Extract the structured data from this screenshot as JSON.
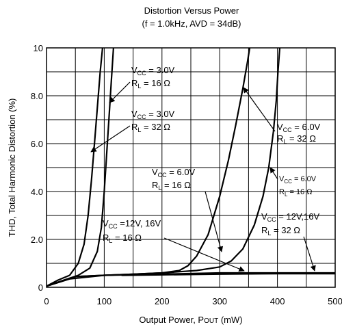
{
  "chart_data": {
    "type": "line",
    "title": "Distortion Versus Power",
    "subtitle": "(f = 1.0kHz, AVD = 34dB)",
    "xlabel_main": "Output Power, P",
    "xlabel_sub": "OUT",
    "xlabel_unit": " (mW)",
    "ylabel": "THD, Total Harmonic Distortion (%)",
    "xlim": [
      0,
      500
    ],
    "ylim": [
      0,
      10
    ],
    "x_ticks": [
      0,
      100,
      200,
      300,
      400,
      500
    ],
    "x_tick_labels": [
      "0",
      "100",
      "200",
      "300",
      "400",
      "500"
    ],
    "y_ticks": [
      0,
      2,
      4,
      6,
      8,
      10
    ],
    "y_tick_labels": [
      "0",
      "2.0",
      "4.0",
      "6.0",
      "8.0",
      "10"
    ],
    "grid": {
      "x_step": 50,
      "y_step": 1
    },
    "series": [
      {
        "points": [
          [
            0,
            0.05
          ],
          [
            20,
            0.3
          ],
          [
            40,
            0.5
          ],
          [
            55,
            1.0
          ],
          [
            65,
            1.8
          ],
          [
            72,
            3.0
          ],
          [
            78,
            4.5
          ],
          [
            83,
            6.0
          ],
          [
            88,
            7.5
          ],
          [
            93,
            9.0
          ],
          [
            97,
            10
          ]
        ]
      },
      {
        "points": [
          [
            0,
            0.05
          ],
          [
            30,
            0.3
          ],
          [
            55,
            0.5
          ],
          [
            75,
            0.8
          ],
          [
            88,
            1.5
          ],
          [
            95,
            2.5
          ],
          [
            100,
            4.0
          ],
          [
            104,
            5.5
          ],
          [
            108,
            7.0
          ],
          [
            112,
            8.5
          ],
          [
            116,
            10
          ]
        ]
      },
      {
        "points": [
          [
            0,
            0.05
          ],
          [
            20,
            0.2
          ],
          [
            50,
            0.45
          ],
          [
            100,
            0.5
          ],
          [
            150,
            0.55
          ],
          [
            200,
            0.6
          ],
          [
            230,
            0.7
          ],
          [
            245,
            0.9
          ],
          [
            260,
            1.3
          ],
          [
            280,
            2.2
          ],
          [
            300,
            3.8
          ],
          [
            315,
            5.3
          ],
          [
            328,
            6.8
          ],
          [
            340,
            8.3
          ],
          [
            348,
            9.4
          ],
          [
            352,
            10
          ]
        ]
      },
      {
        "points": [
          [
            0,
            0.05
          ],
          [
            40,
            0.35
          ],
          [
            100,
            0.5
          ],
          [
            150,
            0.55
          ],
          [
            200,
            0.6
          ],
          [
            260,
            0.7
          ],
          [
            300,
            0.85
          ],
          [
            320,
            1.1
          ],
          [
            340,
            1.6
          ],
          [
            360,
            2.6
          ],
          [
            375,
            3.8
          ],
          [
            385,
            5.0
          ],
          [
            393,
            6.5
          ],
          [
            398,
            7.8
          ],
          [
            401,
            9.0
          ],
          [
            404,
            10
          ]
        ]
      },
      {
        "points": [
          [
            0,
            0.05
          ],
          [
            50,
            0.45
          ],
          [
            100,
            0.5
          ],
          [
            200,
            0.55
          ],
          [
            300,
            0.6
          ],
          [
            400,
            0.6
          ],
          [
            500,
            0.6
          ]
        ]
      },
      {
        "points": [
          [
            130,
            0.5
          ],
          [
            200,
            0.52
          ],
          [
            300,
            0.55
          ],
          [
            400,
            0.57
          ],
          [
            500,
            0.57
          ]
        ]
      }
    ],
    "annotations": [
      {
        "id": "ann-3v-16",
        "vcc_label": "V",
        "vcc_sub": "CC",
        "vcc_value": " = 3.0V",
        "rl_label": "R",
        "rl_sub": "L",
        "rl_value": " = 16 Ω"
      },
      {
        "id": "ann-3v-32",
        "vcc_label": "V",
        "vcc_sub": "CC",
        "vcc_value": " = 3.0V",
        "rl_label": "R",
        "rl_sub": "L",
        "rl_value": " = 32 Ω"
      },
      {
        "id": "ann-6v-32",
        "vcc_label": "V",
        "vcc_sub": "CC",
        "vcc_value": " = 6.0V",
        "rl_label": "R",
        "rl_sub": "L",
        "rl_value": " = 32 Ω"
      },
      {
        "id": "ann-6v-16-left",
        "vcc_label": "V",
        "vcc_sub": "CC",
        "vcc_value": " = 6.0V",
        "rl_label": "R",
        "rl_sub": "L",
        "rl_value": " = 16 Ω"
      },
      {
        "id": "ann-6v-16-right",
        "vcc_label": "V",
        "vcc_sub": "CC",
        "vcc_value": " = 6.0V",
        "rl_label": "R",
        "rl_sub": "L",
        "rl_value": " = 16 Ω"
      },
      {
        "id": "ann-12v-16",
        "vcc_label": "V",
        "vcc_sub": "CC",
        "vcc_value": " =12V, 16V",
        "rl_label": "R",
        "rl_sub": "L",
        "rl_value": " = 16 Ω"
      },
      {
        "id": "ann-12v-32",
        "vcc_label": "V",
        "vcc_sub": "CC",
        "vcc_value": " = 12V,16V",
        "rl_label": "R",
        "rl_sub": "L",
        "rl_value": " = 32 Ω"
      }
    ]
  }
}
